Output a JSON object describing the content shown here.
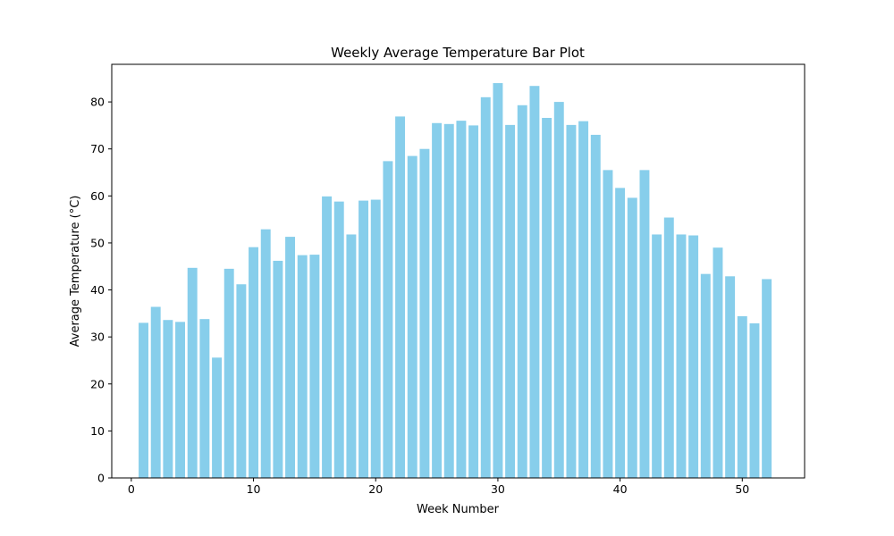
{
  "chart_data": {
    "type": "bar",
    "title": "Weekly Average Temperature Bar Plot",
    "xlabel": "Week Number",
    "ylabel": "Average Temperature (°C)",
    "xlim": [
      -1.6,
      55.1
    ],
    "ylim": [
      0,
      88
    ],
    "xticks": [
      0,
      10,
      20,
      30,
      40,
      50
    ],
    "yticks": [
      0,
      10,
      20,
      30,
      40,
      50,
      60,
      70,
      80
    ],
    "bar_color": "#87CEEB",
    "grid": false,
    "x": [
      1,
      2,
      3,
      4,
      5,
      6,
      7,
      8,
      9,
      10,
      11,
      12,
      13,
      14,
      15,
      16,
      17,
      18,
      19,
      20,
      21,
      22,
      23,
      24,
      25,
      26,
      27,
      28,
      29,
      30,
      31,
      32,
      33,
      34,
      35,
      36,
      37,
      38,
      39,
      40,
      41,
      42,
      43,
      44,
      45,
      46,
      47,
      48,
      49,
      50,
      51,
      52
    ],
    "values": [
      33.0,
      36.4,
      33.6,
      33.2,
      44.7,
      33.8,
      25.6,
      44.5,
      41.2,
      49.1,
      52.9,
      46.2,
      51.3,
      47.4,
      47.5,
      59.9,
      58.8,
      51.8,
      59.0,
      59.2,
      67.4,
      76.9,
      68.5,
      70.0,
      75.5,
      75.3,
      76.0,
      75.0,
      81.0,
      84.0,
      75.1,
      79.3,
      83.4,
      76.6,
      80.0,
      75.1,
      75.9,
      73.0,
      65.5,
      61.7,
      59.6,
      65.5,
      51.8,
      55.4,
      51.8,
      51.6,
      43.4,
      49.0,
      42.9,
      34.4,
      32.9,
      42.3
    ]
  }
}
